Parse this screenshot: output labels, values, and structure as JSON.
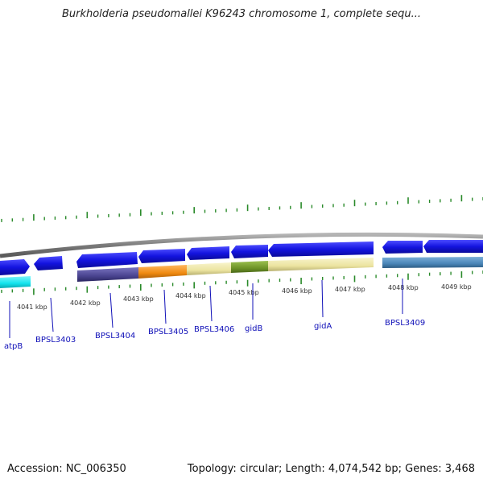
{
  "title": "Burkholderia pseudomallei K96243 chromosome 1, complete sequ...",
  "footer": {
    "accession": "Accession: NC_006350",
    "topology": "Topology: circular; Length: 4,074,542 bp; Genes: 3,468"
  },
  "scale_labels": [
    "4041 kbp",
    "4042 kbp",
    "4043 kbp",
    "4044 kbp",
    "4045 kbp",
    "4046 kbp",
    "4047 kbp",
    "4048 kbp",
    "4049 kbp"
  ],
  "gene_labels": [
    "atpB",
    "BPSL3403",
    "BPSL3404",
    "BPSL3405",
    "BPSL3406",
    "gidB",
    "gidA",
    "BPSL3409"
  ],
  "colors": {
    "gene_arrow": "#1a1ae6",
    "backbone": "#8a8a8a",
    "tick": "#2a8a2a",
    "label_text": "#1010b8",
    "cyan_feature": "#16e8f0",
    "indigo_feature": "#4a4490",
    "orange_feature": "#f08a10",
    "khaki_feature": "#ece6a0",
    "olive_feature": "#6e9428",
    "steel_feature": "#4a86b8"
  }
}
